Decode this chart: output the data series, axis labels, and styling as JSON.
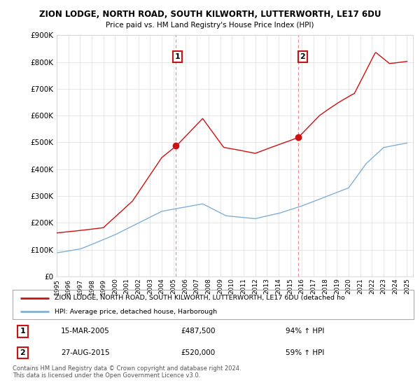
{
  "title": "ZION LODGE, NORTH ROAD, SOUTH KILWORTH, LUTTERWORTH, LE17 6DU",
  "subtitle": "Price paid vs. HM Land Registry's House Price Index (HPI)",
  "ylim": [
    0,
    900000
  ],
  "xlim_start": 1995.0,
  "xlim_end": 2025.5,
  "legend_line1": "ZION LODGE, NORTH ROAD, SOUTH KILWORTH, LUTTERWORTH, LE17 6DU (detached ho",
  "legend_line2": "HPI: Average price, detached house, Harborough",
  "annotation1_date": "15-MAR-2005",
  "annotation1_price": "£487,500",
  "annotation1_hpi": "94% ↑ HPI",
  "annotation2_date": "27-AUG-2015",
  "annotation2_price": "£520,000",
  "annotation2_hpi": "59% ↑ HPI",
  "footer": "Contains HM Land Registry data © Crown copyright and database right 2024.\nThis data is licensed under the Open Government Licence v3.0.",
  "hpi_color": "#7fb0d8",
  "price_color": "#cc1111",
  "marker_color": "#cc1111",
  "dashed_line_color": "#ee8888",
  "purchase1_x": 2005.21,
  "purchase1_y": 487500,
  "purchase2_x": 2015.66,
  "purchase2_y": 520000
}
